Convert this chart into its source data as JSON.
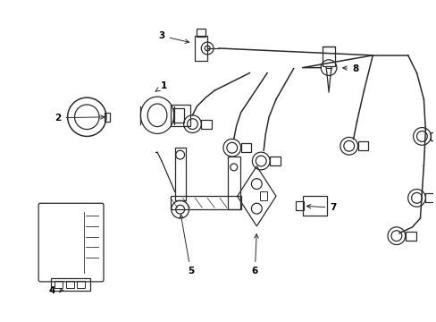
{
  "background_color": "#ffffff",
  "line_color": "#2a2a2a",
  "label_color": "#000000",
  "fig_width": 4.89,
  "fig_height": 3.6,
  "dpi": 100
}
